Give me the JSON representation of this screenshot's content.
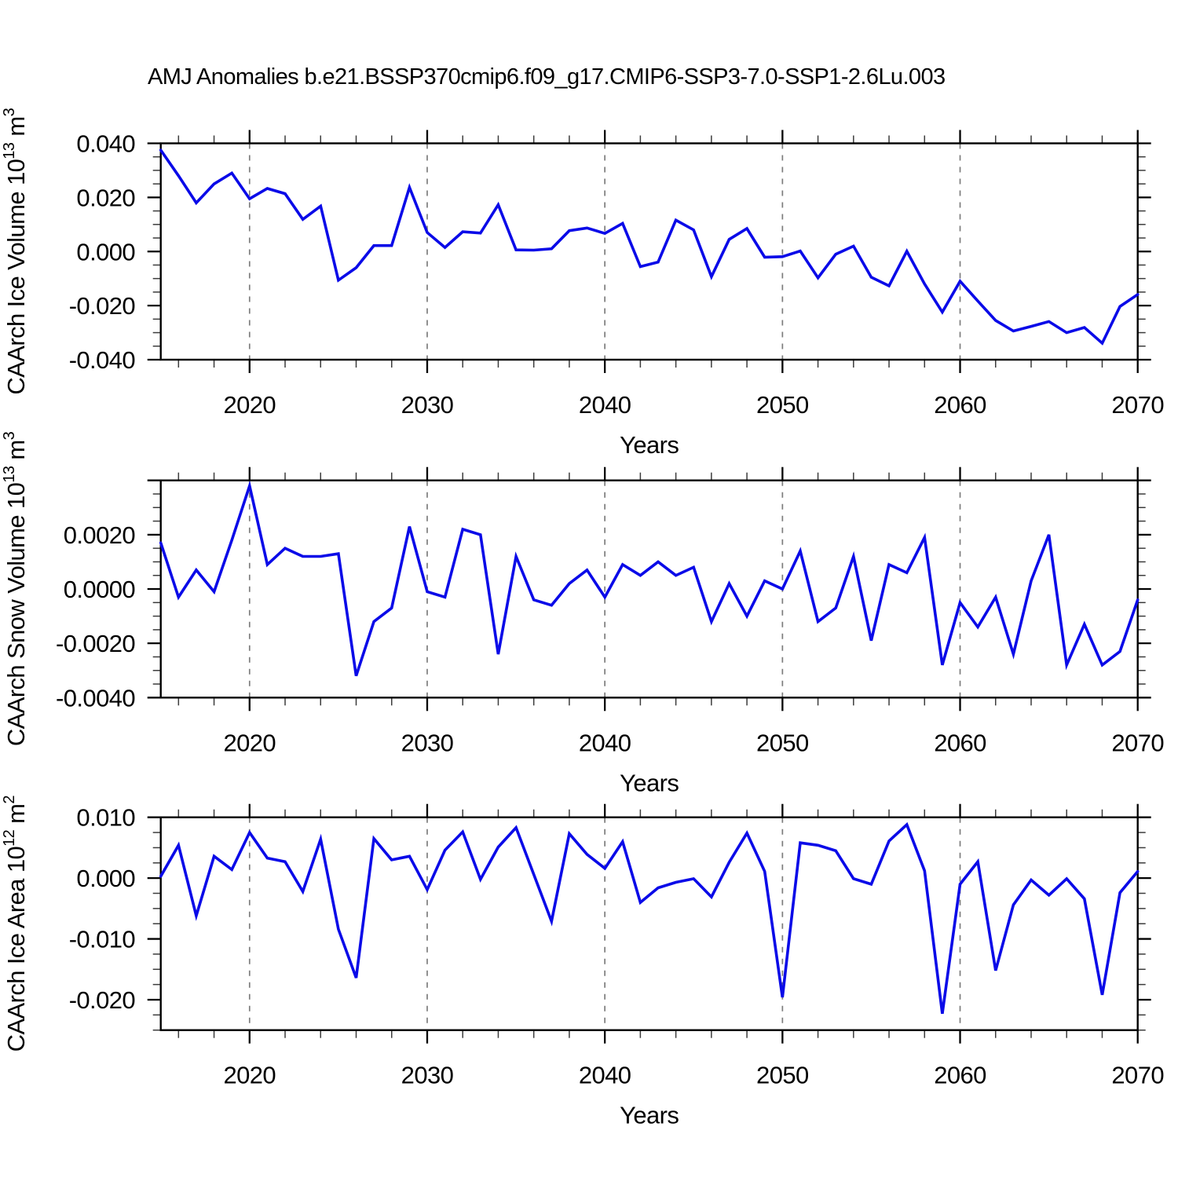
{
  "title": "AMJ Anomalies b.e21.BSSP370cmip6.f09_g17.CMIP6-SSP3-7.0-SSP1-2.6Lu.003",
  "colors": {
    "line": "#0a0ae8",
    "grid": "#7d7d7d",
    "frame": "#000000",
    "text": "#000000"
  },
  "x_axis": {
    "label": "Years",
    "xlim": [
      2015,
      2070
    ],
    "ticks": [
      {
        "v": 2020,
        "label": "2020"
      },
      {
        "v": 2030,
        "label": "2030"
      },
      {
        "v": 2040,
        "label": "2040"
      },
      {
        "v": 2050,
        "label": "2050"
      },
      {
        "v": 2060,
        "label": "2060"
      },
      {
        "v": 2070,
        "label": "2070"
      }
    ],
    "minor_step": 2,
    "grid_years": [
      2020,
      2030,
      2040,
      2050,
      2060
    ]
  },
  "years": [
    2015,
    2016,
    2017,
    2018,
    2019,
    2020,
    2021,
    2022,
    2023,
    2024,
    2025,
    2026,
    2027,
    2028,
    2029,
    2030,
    2031,
    2032,
    2033,
    2034,
    2035,
    2036,
    2037,
    2038,
    2039,
    2040,
    2041,
    2042,
    2043,
    2044,
    2045,
    2046,
    2047,
    2048,
    2049,
    2050,
    2051,
    2052,
    2053,
    2054,
    2055,
    2056,
    2057,
    2058,
    2059,
    2060,
    2061,
    2062,
    2063,
    2064,
    2065,
    2066,
    2067,
    2068,
    2069,
    2070
  ],
  "chart_data": [
    {
      "id": "ice-volume",
      "type": "line",
      "ylabel": [
        {
          "t": "CAArch Ice Volume 10"
        },
        {
          "t": "13",
          "sup": true
        },
        {
          "t": " m"
        },
        {
          "t": "3",
          "sup": true
        }
      ],
      "ylim": [
        -0.04,
        0.04
      ],
      "yticks": [
        {
          "v": 0.04,
          "label": "0.040"
        },
        {
          "v": 0.02,
          "label": "0.020"
        },
        {
          "v": 0.0,
          "label": "0.000"
        },
        {
          "v": -0.02,
          "label": "-0.020"
        },
        {
          "v": -0.04,
          "label": "-0.040"
        }
      ],
      "yminor": 0.005,
      "grid": "vertical-dashed",
      "legend": "none",
      "values": [
        0.0375,
        0.028,
        0.018,
        0.025,
        0.029,
        0.0195,
        0.0233,
        0.0214,
        0.0119,
        0.0168,
        -0.0106,
        -0.006,
        0.0022,
        0.0022,
        0.0237,
        0.007,
        0.0015,
        0.0073,
        0.0068,
        0.0173,
        0.0006,
        0.0005,
        0.001,
        0.0077,
        0.0087,
        0.0067,
        0.0104,
        -0.0056,
        -0.0039,
        0.0116,
        0.008,
        -0.0093,
        0.0045,
        0.0085,
        -0.0021,
        -0.0019,
        0.0002,
        -0.0097,
        -0.001,
        0.002,
        -0.0095,
        -0.0127,
        0.0001,
        -0.012,
        -0.0224,
        -0.011,
        -0.0183,
        -0.0255,
        -0.0294,
        -0.0277,
        -0.0259,
        -0.03,
        -0.0281,
        -0.0339,
        -0.0203,
        -0.0159
      ]
    },
    {
      "id": "snow-volume",
      "type": "line",
      "ylabel": [
        {
          "t": "CAArch Snow Volume 10"
        },
        {
          "t": "13",
          "sup": true
        },
        {
          "t": " m"
        },
        {
          "t": "3",
          "sup": true
        }
      ],
      "ylim": [
        -0.004,
        0.004
      ],
      "yticks": [
        {
          "v": 0.004,
          "label": ""
        },
        {
          "v": 0.002,
          "label": "0.0020"
        },
        {
          "v": 0.0,
          "label": "0.0000"
        },
        {
          "v": -0.002,
          "label": "-0.0020"
        },
        {
          "v": -0.004,
          "label": "-0.0040"
        }
      ],
      "yminor": 0.0005,
      "grid": "vertical-dashed",
      "legend": "none",
      "values": [
        0.0017,
        -0.0003,
        0.0007,
        -0.0001,
        0.0018,
        0.0038,
        0.0009,
        0.0015,
        0.0012,
        0.0012,
        0.0013,
        -0.0032,
        -0.0012,
        -0.0007,
        0.0023,
        -0.0001,
        -0.0003,
        0.0022,
        0.002,
        -0.0024,
        0.0012,
        -0.0004,
        -0.0006,
        0.0002,
        0.0007,
        -0.0003,
        0.0009,
        0.0005,
        0.001,
        0.0005,
        0.0008,
        -0.0012,
        0.0002,
        -0.001,
        0.0003,
        0.0,
        0.0014,
        -0.0012,
        -0.0007,
        0.0012,
        -0.0019,
        0.0009,
        0.0006,
        0.0019,
        -0.0028,
        -0.0005,
        -0.0014,
        -0.0003,
        -0.0024,
        0.0003,
        0.002,
        -0.0028,
        -0.0013,
        -0.0028,
        -0.0023,
        -0.0004
      ]
    },
    {
      "id": "ice-area",
      "type": "line",
      "ylabel": [
        {
          "t": "CAArch Ice Area 10"
        },
        {
          "t": "12",
          "sup": true
        },
        {
          "t": " m"
        },
        {
          "t": "2",
          "sup": true
        }
      ],
      "ylim": [
        -0.025,
        0.01
      ],
      "yticks": [
        {
          "v": 0.01,
          "label": "0.010"
        },
        {
          "v": 0.0,
          "label": "0.000"
        },
        {
          "v": -0.01,
          "label": "-0.010"
        },
        {
          "v": -0.02,
          "label": "-0.020"
        }
      ],
      "yminor": 0.0025,
      "grid": "vertical-dashed",
      "legend": "none",
      "values": [
        0.0003,
        0.0054,
        -0.0062,
        0.0036,
        0.0014,
        0.0075,
        0.0033,
        0.0027,
        -0.0022,
        0.0064,
        -0.0084,
        -0.0164,
        0.0065,
        0.003,
        0.0036,
        -0.0019,
        0.0046,
        0.0076,
        -0.0002,
        0.0051,
        0.0083,
        0.0006,
        -0.0071,
        0.0073,
        0.0039,
        0.0016,
        0.006,
        -0.004,
        -0.0016,
        -0.0007,
        -0.0001,
        -0.0031,
        0.0026,
        0.0074,
        0.0011,
        -0.0196,
        0.0058,
        0.0054,
        0.0045,
        -0.0001,
        -0.001,
        0.0061,
        0.0088,
        0.0012,
        -0.0223,
        -0.001,
        0.0027,
        -0.0152,
        -0.0044,
        -0.0003,
        -0.0028,
        -0.0001,
        -0.0034,
        -0.0192,
        -0.0024,
        0.0011
      ]
    }
  ]
}
